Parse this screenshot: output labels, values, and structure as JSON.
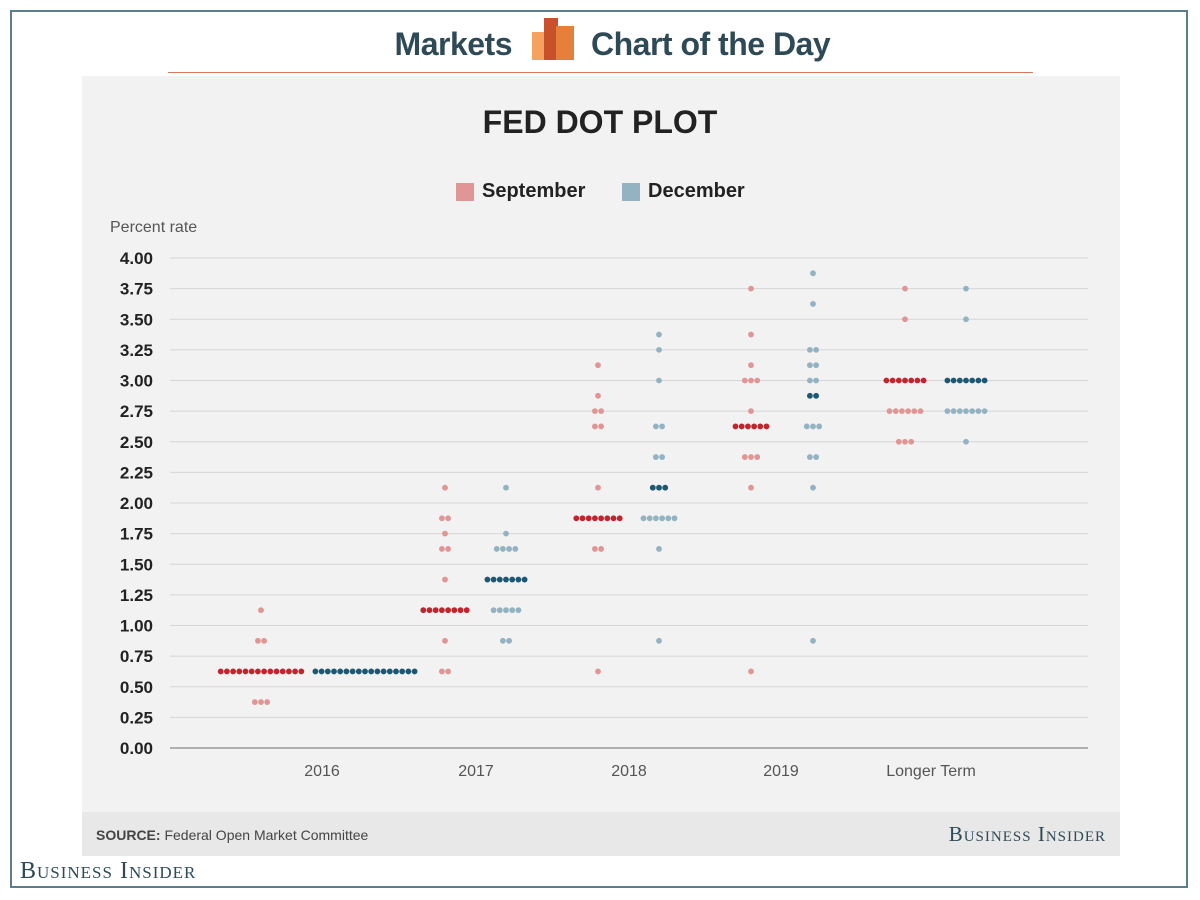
{
  "header": {
    "left": "Markets",
    "right": "Chart of the Day",
    "logo_icon": "bar-chart-logo-icon",
    "logo_colors": [
      "#f4a25e",
      "#c9512a",
      "#e57f3c"
    ]
  },
  "footer": {
    "source_label": "SOURCE:",
    "source_text": "Federal Open Market Committee",
    "brand": "Business Insider"
  },
  "brand_bottom": "Business Insider",
  "chart_data": {
    "type": "scatter",
    "title": "FED DOT PLOT",
    "ylabel": "Percent rate",
    "xlabel": "",
    "ylim": [
      0,
      4
    ],
    "yticks": [
      "0.00",
      "0.25",
      "0.50",
      "0.75",
      "1.00",
      "1.25",
      "1.50",
      "1.75",
      "2.00",
      "2.25",
      "2.50",
      "2.75",
      "3.00",
      "3.25",
      "3.50",
      "3.75",
      "4.00"
    ],
    "categories": [
      "2016",
      "2017",
      "2018",
      "2019",
      "Longer Term"
    ],
    "grid": true,
    "legend": "top-center",
    "series": [
      {
        "name": "September",
        "color": "#e09694",
        "median_color": "#c0252e",
        "groups": [
          [
            [
              1.125,
              1
            ],
            [
              0.875,
              2
            ],
            [
              0.625,
              14
            ],
            [
              0.375,
              3
            ]
          ],
          [
            [
              2.125,
              1
            ],
            [
              1.875,
              2
            ],
            [
              1.75,
              1
            ],
            [
              1.625,
              2
            ],
            [
              1.375,
              1
            ],
            [
              1.125,
              8
            ],
            [
              0.875,
              1
            ],
            [
              0.625,
              2
            ]
          ],
          [
            [
              3.125,
              1
            ],
            [
              2.875,
              1
            ],
            [
              2.75,
              2
            ],
            [
              2.625,
              2
            ],
            [
              2.125,
              1
            ],
            [
              1.875,
              8
            ],
            [
              1.625,
              2
            ],
            [
              0.625,
              1
            ]
          ],
          [
            [
              3.75,
              1
            ],
            [
              3.375,
              1
            ],
            [
              3.125,
              1
            ],
            [
              3.0,
              3
            ],
            [
              2.75,
              1
            ],
            [
              2.625,
              6
            ],
            [
              2.375,
              3
            ],
            [
              2.125,
              1
            ],
            [
              0.625,
              1
            ]
          ],
          [
            [
              3.75,
              1
            ],
            [
              3.5,
              1
            ],
            [
              3.0,
              7
            ],
            [
              2.75,
              6
            ],
            [
              2.5,
              3
            ]
          ]
        ],
        "medians": [
          0.625,
          1.125,
          1.875,
          2.625,
          3.0
        ]
      },
      {
        "name": "December",
        "color": "#93b3c2",
        "median_color": "#1c5873",
        "groups": [
          [
            [
              0.625,
              17
            ]
          ],
          [
            [
              2.125,
              1
            ],
            [
              1.75,
              1
            ],
            [
              1.625,
              4
            ],
            [
              1.375,
              7
            ],
            [
              1.125,
              5
            ],
            [
              0.875,
              2
            ]
          ],
          [
            [
              3.375,
              1
            ],
            [
              3.25,
              1
            ],
            [
              3.0,
              1
            ],
            [
              2.625,
              2
            ],
            [
              2.375,
              2
            ],
            [
              2.125,
              3
            ],
            [
              1.875,
              6
            ],
            [
              1.625,
              1
            ],
            [
              0.875,
              1
            ]
          ],
          [
            [
              3.875,
              1
            ],
            [
              3.625,
              1
            ],
            [
              3.25,
              2
            ],
            [
              3.125,
              2
            ],
            [
              3.0,
              2
            ],
            [
              2.875,
              2
            ],
            [
              2.625,
              3
            ],
            [
              2.375,
              2
            ],
            [
              2.125,
              1
            ],
            [
              0.875,
              1
            ]
          ],
          [
            [
              3.75,
              1
            ],
            [
              3.5,
              1
            ],
            [
              3.0,
              7
            ],
            [
              2.75,
              7
            ],
            [
              2.5,
              1
            ]
          ]
        ],
        "medians": [
          0.625,
          1.375,
          2.125,
          2.875,
          3.0
        ]
      }
    ]
  }
}
